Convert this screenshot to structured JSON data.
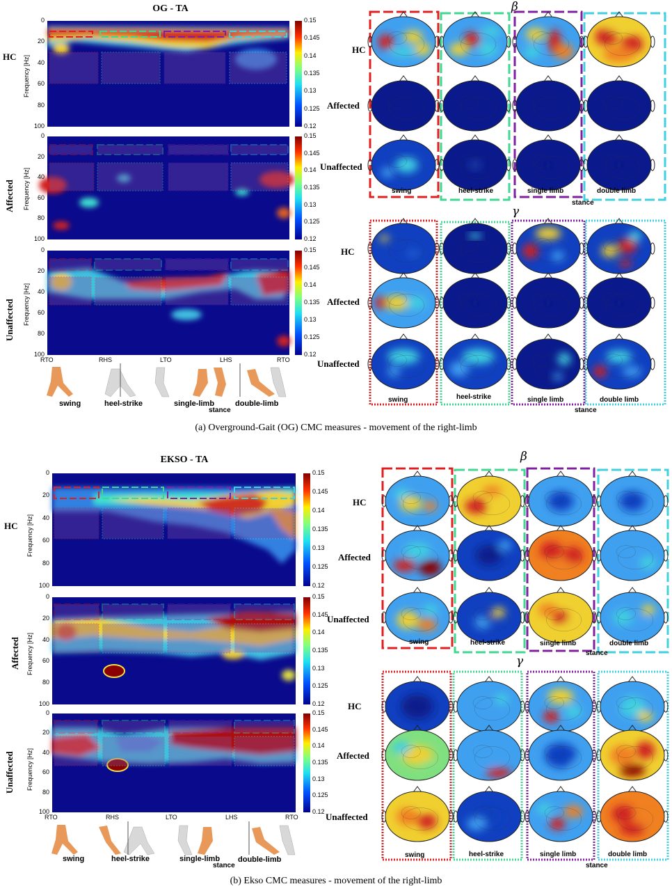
{
  "figures": [
    {
      "title": "OG - TA",
      "caption": "(a) Overground-Gait (OG) CMC measures - movement of the right-limb",
      "beta_symbol": "β",
      "gamma_symbol": "γ",
      "rows": [
        "HC",
        "Affected",
        "Unaffected"
      ],
      "ylabel": "Frequency [Hz]",
      "yticks": [
        "0",
        "20",
        "40",
        "60",
        "80",
        "100"
      ],
      "colorbar_ticks": [
        "0.15",
        "0.145",
        "0.14",
        "0.135",
        "0.13",
        "0.125",
        "0.12"
      ],
      "gait_events": [
        "RTO",
        "RHS",
        "LTO",
        "LHS",
        "RTO"
      ],
      "phases_left": [
        "swing",
        "heel-strike",
        "single-limb",
        "double-limb"
      ],
      "phases_right": [
        "swing",
        "heel-strike",
        "single limb",
        "double limb"
      ],
      "stance_label": "stance",
      "phase_colors": [
        "#e02020",
        "#40d890",
        "#8020a0",
        "#40d0e0"
      ]
    },
    {
      "title": "EKSO - TA",
      "caption": "(b) Ekso CMC measures - movement of the right-limb",
      "beta_symbol": "β",
      "gamma_symbol": "γ",
      "rows": [
        "HC",
        "Affected",
        "Unaffected"
      ],
      "ylabel": "Frequency [Hz]",
      "yticks": [
        "0",
        "20",
        "40",
        "60",
        "80",
        "100"
      ],
      "colorbar_ticks": [
        "0.15",
        "0.145",
        "0.14",
        "0.135",
        "0.13",
        "0.125",
        "0.12"
      ],
      "gait_events": [
        "RTO",
        "RHS",
        "LTO",
        "LHS",
        "RTO"
      ],
      "phases_left": [
        "swing",
        "heel-strike",
        "single-limb",
        "double-limb"
      ],
      "phases_right": [
        "swing",
        "heel-strike",
        "single limb",
        "double limb"
      ],
      "stance_label": "stance",
      "phase_colors": [
        "#e02020",
        "#40d890",
        "#8020a0",
        "#40d0e0"
      ]
    }
  ],
  "colormap": {
    "low": "#0a0a8c",
    "mid": "#40e0d0",
    "high": "#8b0000",
    "range": [
      0.12,
      0.15
    ]
  }
}
